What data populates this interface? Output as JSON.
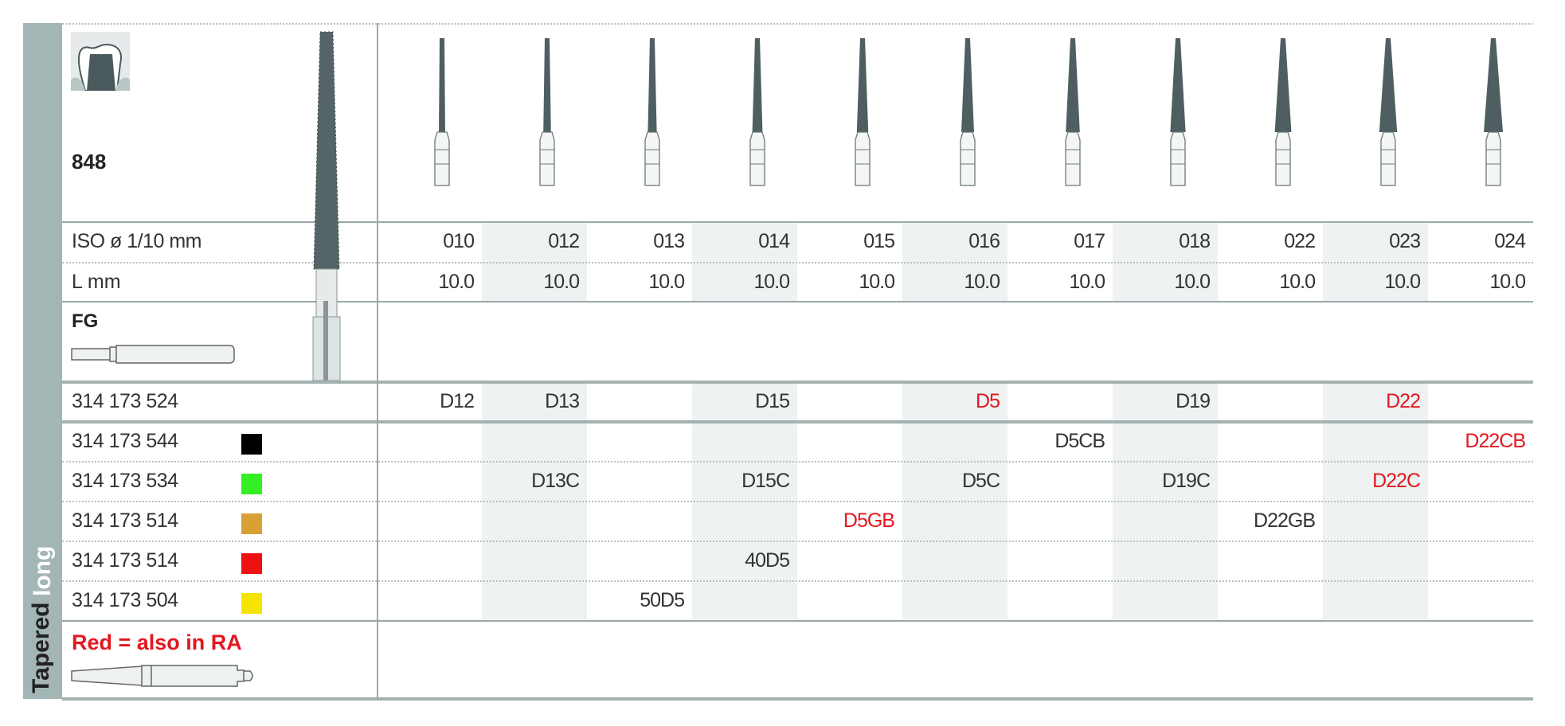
{
  "header": {
    "figure_number": "848",
    "shank_type": "FG"
  },
  "side_labels": {
    "shape": "Tapered",
    "variant": "long"
  },
  "row_labels": {
    "iso": "ISO ø 1/10 mm",
    "length": "L mm"
  },
  "columns": [
    {
      "iso": "010",
      "length": "10.0"
    },
    {
      "iso": "012",
      "length": "10.0"
    },
    {
      "iso": "013",
      "length": "10.0"
    },
    {
      "iso": "014",
      "length": "10.0"
    },
    {
      "iso": "015",
      "length": "10.0"
    },
    {
      "iso": "016",
      "length": "10.0"
    },
    {
      "iso": "017",
      "length": "10.0"
    },
    {
      "iso": "018",
      "length": "10.0"
    },
    {
      "iso": "022",
      "length": "10.0"
    },
    {
      "iso": "023",
      "length": "10.0"
    },
    {
      "iso": "024",
      "length": "10.0"
    }
  ],
  "rows": [
    {
      "code": "314 173 524",
      "swatch": null,
      "cells": [
        {
          "col": 0,
          "text": "D12",
          "red": false
        },
        {
          "col": 1,
          "text": "D13",
          "red": false
        },
        {
          "col": 3,
          "text": "D15",
          "red": false
        },
        {
          "col": 5,
          "text": "D5",
          "red": true
        },
        {
          "col": 7,
          "text": "D19",
          "red": false
        },
        {
          "col": 9,
          "text": "D22",
          "red": true
        }
      ]
    },
    {
      "code": "314 173 544",
      "swatch": "#000000",
      "cells": [
        {
          "col": 6,
          "text": "D5CB",
          "red": false
        },
        {
          "col": 10,
          "text": "D22CB",
          "red": true
        }
      ]
    },
    {
      "code": "314 173 534",
      "swatch": "#33ee22",
      "cells": [
        {
          "col": 1,
          "text": "D13C",
          "red": false
        },
        {
          "col": 3,
          "text": "D15C",
          "red": false
        },
        {
          "col": 5,
          "text": "D5C",
          "red": false
        },
        {
          "col": 7,
          "text": "D19C",
          "red": false
        },
        {
          "col": 9,
          "text": "D22C",
          "red": true
        }
      ]
    },
    {
      "code": "314 173 514",
      "swatch": "#d9a035",
      "cells": [
        {
          "col": 4,
          "text": "D5GB",
          "red": true
        },
        {
          "col": 8,
          "text": "D22GB",
          "red": false
        }
      ]
    },
    {
      "code": "314 173 514",
      "swatch": "#ee1111",
      "cells": [
        {
          "col": 3,
          "text": "40D5",
          "red": false
        }
      ]
    },
    {
      "code": "314 173 504",
      "swatch": "#f5e400",
      "cells": [
        {
          "col": 2,
          "text": "50D5",
          "red": false
        }
      ]
    }
  ],
  "legend": {
    "note": "Red = also in RA"
  },
  "colors": {
    "accent_red": "#e3171e",
    "sidebar": "#a3b5b5",
    "bur": "#4a5a5c"
  }
}
